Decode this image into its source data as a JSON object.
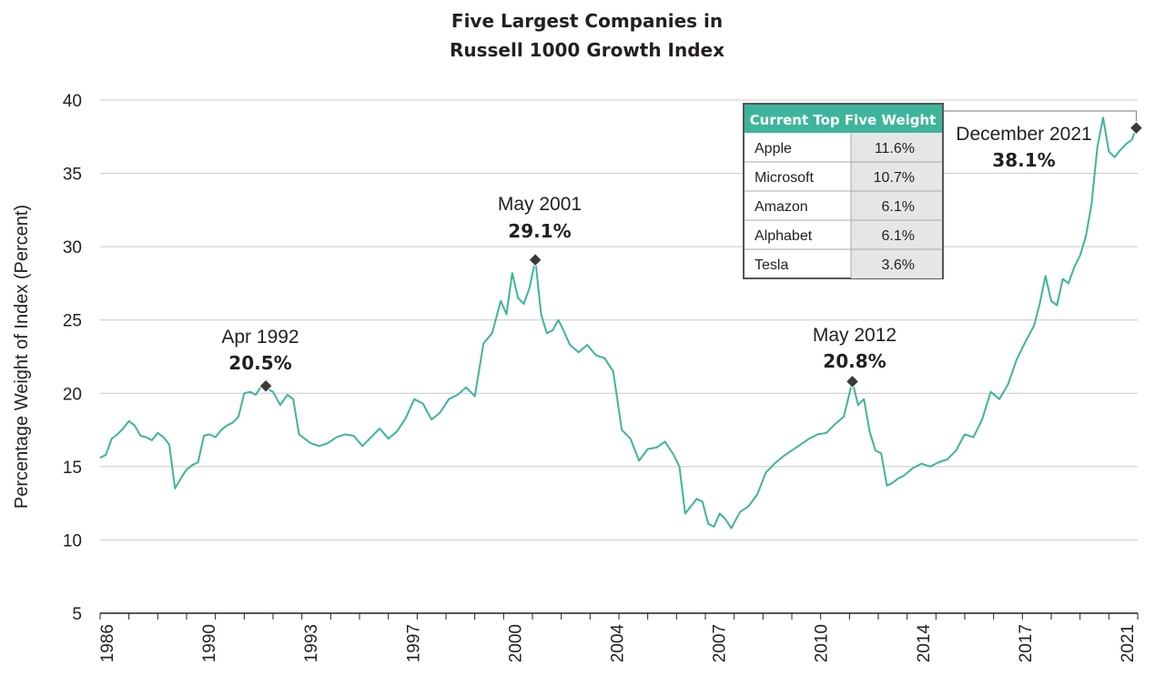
{
  "chart_data": {
    "type": "line",
    "title_lines": [
      "Five Largest Companies in",
      "Russell 1000 Growth Index"
    ],
    "xlabel": "",
    "ylabel": "Percentage Weight of Index (Percent)",
    "ylim": [
      5,
      40
    ],
    "yticks": [
      5,
      10,
      15,
      20,
      25,
      30,
      35,
      40
    ],
    "xlim": [
      1986.0,
      2022.0
    ],
    "xtick_labels": [
      "1986",
      "1990",
      "1993",
      "1997",
      "2000",
      "2004",
      "2007",
      "2010",
      "2014",
      "2017",
      "2021"
    ],
    "grid": true,
    "line_color": "#3fb49c",
    "series": [
      {
        "x": [
          1986.0,
          1986.2,
          1986.4,
          1986.6,
          1986.8,
          1987.0,
          1987.2,
          1987.4,
          1987.6,
          1987.8,
          1988.0,
          1988.2,
          1988.4,
          1988.6,
          1988.8,
          1989.0,
          1989.2,
          1989.4,
          1989.6,
          1989.8,
          1990.0,
          1990.2,
          1990.4,
          1990.6,
          1990.8,
          1991.0,
          1991.2,
          1991.4,
          1991.6,
          1991.8,
          1992.0,
          1992.25,
          1992.5,
          1992.7,
          1992.9,
          1993.1,
          1993.3,
          1993.6,
          1993.9,
          1994.2,
          1994.5,
          1994.8,
          1995.1,
          1995.4,
          1995.7,
          1996.0,
          1996.3,
          1996.6,
          1996.9,
          1997.2,
          1997.5,
          1997.8,
          1998.1,
          1998.4,
          1998.7,
          1999.0,
          1999.3,
          1999.6,
          1999.9,
          2000.1,
          2000.3,
          2000.5,
          2000.7,
          2000.9,
          2001.1,
          2001.3,
          2001.5,
          2001.7,
          2001.9,
          2002.1,
          2002.3,
          2002.6,
          2002.9,
          2003.2,
          2003.5,
          2003.8,
          2004.1,
          2004.4,
          2004.7,
          2005.0,
          2005.3,
          2005.6,
          2005.9,
          2006.1,
          2006.3,
          2006.5,
          2006.7,
          2006.9,
          2007.1,
          2007.3,
          2007.5,
          2007.7,
          2007.9,
          2008.2,
          2008.5,
          2008.8,
          2009.1,
          2009.4,
          2009.7,
          2010.0,
          2010.3,
          2010.6,
          2010.9,
          2011.2,
          2011.5,
          2011.8,
          2012.1,
          2012.3,
          2012.5,
          2012.7,
          2012.9,
          2013.1,
          2013.3,
          2013.5,
          2013.7,
          2013.9,
          2014.2,
          2014.5,
          2014.8,
          2015.1,
          2015.4,
          2015.7,
          2016.0,
          2016.3,
          2016.6,
          2016.9,
          2017.2,
          2017.5,
          2017.8,
          2018.1,
          2018.4,
          2018.6,
          2018.8,
          2019.0,
          2019.2,
          2019.4,
          2019.6,
          2019.8,
          2020.0,
          2020.2,
          2020.4,
          2020.6,
          2020.8,
          2021.0,
          2021.2,
          2021.4,
          2021.6,
          2021.8,
          2021.95
        ],
        "values": [
          15.6,
          15.8,
          16.9,
          17.2,
          17.6,
          18.1,
          17.8,
          17.1,
          17.0,
          16.8,
          17.3,
          17.0,
          16.5,
          13.5,
          14.2,
          14.8,
          15.1,
          15.3,
          17.1,
          17.2,
          17.0,
          17.5,
          17.8,
          18.0,
          18.4,
          20.0,
          20.1,
          19.9,
          20.5,
          20.3,
          20.1,
          19.2,
          19.9,
          19.6,
          17.2,
          16.9,
          16.6,
          16.4,
          16.6,
          17.0,
          17.2,
          17.1,
          16.4,
          17.0,
          17.6,
          16.9,
          17.4,
          18.3,
          19.6,
          19.3,
          18.2,
          18.7,
          19.6,
          19.9,
          20.4,
          19.8,
          23.4,
          24.1,
          26.3,
          25.4,
          28.2,
          26.5,
          26.1,
          27.2,
          29.1,
          25.4,
          24.1,
          24.3,
          25.0,
          24.2,
          23.3,
          22.8,
          23.3,
          22.6,
          22.4,
          21.5,
          17.5,
          16.9,
          15.4,
          16.2,
          16.3,
          16.7,
          15.8,
          15.0,
          11.8,
          12.3,
          12.8,
          12.6,
          11.1,
          10.9,
          11.8,
          11.4,
          10.8,
          11.9,
          12.3,
          13.1,
          14.6,
          15.2,
          15.7,
          16.1,
          16.5,
          16.9,
          17.2,
          17.3,
          17.9,
          18.4,
          20.8,
          19.2,
          19.6,
          17.4,
          16.1,
          15.9,
          13.7,
          13.9,
          14.2,
          14.4,
          14.9,
          15.2,
          15.0,
          15.3,
          15.5,
          16.1,
          17.2,
          17.0,
          18.2,
          20.1,
          19.6,
          20.6,
          22.3,
          23.5,
          24.6,
          26.1,
          28.0,
          26.3,
          26.0,
          27.8,
          27.5,
          28.6,
          29.4,
          30.7,
          32.9,
          36.8,
          38.8,
          36.5,
          36.1,
          36.6,
          37.0,
          37.3,
          38.1
        ]
      }
    ],
    "annotations": [
      {
        "date": "Apr 1992",
        "value": "20.5%",
        "x": 1991.75,
        "y": 20.5
      },
      {
        "date": "May 2001",
        "value": "29.1%",
        "x": 2001.1,
        "y": 29.1
      },
      {
        "date": "May 2012",
        "value": "20.8%",
        "x": 2012.1,
        "y": 20.8
      },
      {
        "date": "December 2021",
        "value": "38.1%",
        "x": 2021.95,
        "y": 38.1
      }
    ],
    "table": {
      "title": "Current Top Five Weight",
      "header_color": "#3fb49c",
      "rows": [
        {
          "name": "Apple",
          "weight": "11.6%"
        },
        {
          "name": "Microsoft",
          "weight": "10.7%"
        },
        {
          "name": "Amazon",
          "weight": "6.1%"
        },
        {
          "name": "Alphabet",
          "weight": "6.1%"
        },
        {
          "name": "Tesla",
          "weight": "3.6%"
        }
      ]
    }
  }
}
